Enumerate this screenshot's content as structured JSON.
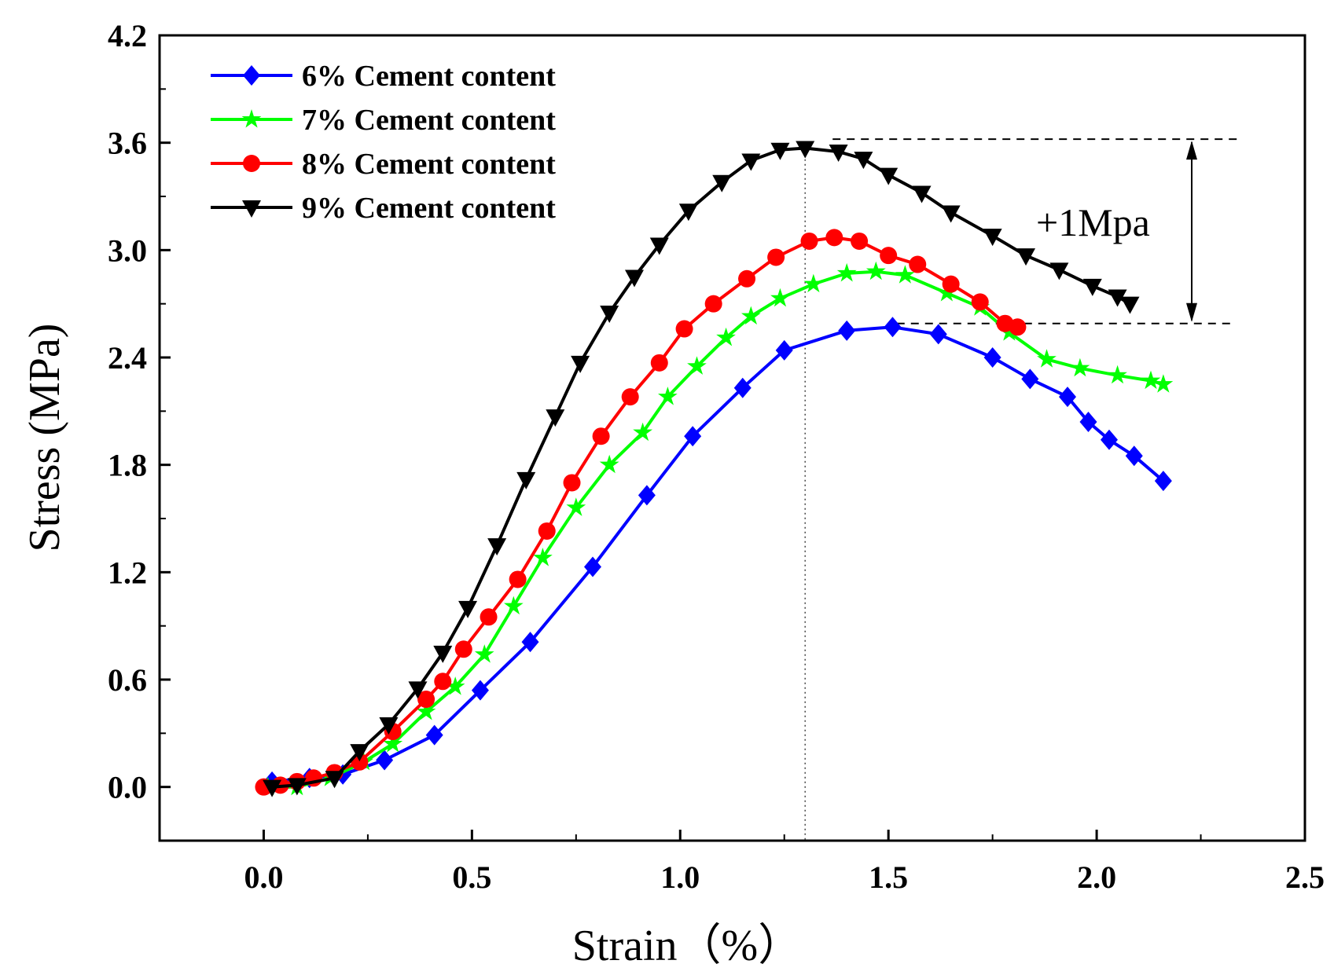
{
  "chart_data": {
    "type": "line",
    "title": "",
    "xlabel": "Strain（%）",
    "ylabel": "Stress (MPa)",
    "xlim": [
      -0.25,
      2.5
    ],
    "ylim": [
      -0.3,
      4.2
    ],
    "xticks": [
      0.0,
      0.5,
      1.0,
      1.5,
      2.0,
      2.5
    ],
    "xtick_labels": [
      "0.0",
      "0.5",
      "1.0",
      "1.5",
      "2.0",
      "2.5"
    ],
    "yticks": [
      0.0,
      0.6,
      1.2,
      1.8,
      2.4,
      3.0,
      3.6,
      4.2
    ],
    "ytick_labels": [
      "0.0",
      "0.6",
      "1.2",
      "1.8",
      "2.4",
      "3.0",
      "3.6",
      "4.2"
    ],
    "grid": false,
    "legend_position": "top-left",
    "series": [
      {
        "name": "6% Cement content",
        "color": "#0000ff",
        "marker": "diamond",
        "x": [
          0.02,
          0.11,
          0.19,
          0.29,
          0.41,
          0.52,
          0.64,
          0.79,
          0.92,
          1.03,
          1.15,
          1.25,
          1.4,
          1.51,
          1.62,
          1.75,
          1.84,
          1.93,
          1.98,
          2.03,
          2.09,
          2.16
        ],
        "y": [
          0.03,
          0.05,
          0.07,
          0.15,
          0.29,
          0.54,
          0.81,
          1.23,
          1.63,
          1.96,
          2.23,
          2.44,
          2.55,
          2.57,
          2.53,
          2.4,
          2.28,
          2.18,
          2.04,
          1.94,
          1.85,
          1.71
        ]
      },
      {
        "name": "7% Cement content",
        "color": "#00ff00",
        "marker": "star",
        "x": [
          0.01,
          0.08,
          0.16,
          0.24,
          0.31,
          0.39,
          0.46,
          0.53,
          0.6,
          0.67,
          0.75,
          0.83,
          0.91,
          0.97,
          1.04,
          1.11,
          1.17,
          1.24,
          1.32,
          1.4,
          1.47,
          1.54,
          1.64,
          1.72,
          1.79,
          1.88,
          1.96,
          2.05,
          2.13,
          2.16
        ],
        "y": [
          0.0,
          0.0,
          0.05,
          0.14,
          0.24,
          0.42,
          0.56,
          0.74,
          1.01,
          1.28,
          1.56,
          1.8,
          1.98,
          2.18,
          2.35,
          2.51,
          2.63,
          2.73,
          2.81,
          2.87,
          2.88,
          2.86,
          2.76,
          2.68,
          2.54,
          2.39,
          2.34,
          2.3,
          2.27,
          2.25
        ]
      },
      {
        "name": "8% Cement content",
        "color": "#ff0000",
        "marker": "circle",
        "x": [
          0.0,
          0.04,
          0.08,
          0.12,
          0.17,
          0.23,
          0.31,
          0.39,
          0.43,
          0.48,
          0.54,
          0.61,
          0.68,
          0.74,
          0.81,
          0.88,
          0.95,
          1.01,
          1.08,
          1.16,
          1.23,
          1.31,
          1.37,
          1.43,
          1.5,
          1.57,
          1.65,
          1.72,
          1.78,
          1.81
        ],
        "y": [
          0.0,
          0.01,
          0.03,
          0.05,
          0.08,
          0.14,
          0.31,
          0.49,
          0.59,
          0.77,
          0.95,
          1.16,
          1.43,
          1.7,
          1.96,
          2.18,
          2.37,
          2.56,
          2.7,
          2.84,
          2.96,
          3.05,
          3.07,
          3.05,
          2.97,
          2.92,
          2.81,
          2.71,
          2.59,
          2.57
        ]
      },
      {
        "name": "9% Cement content",
        "color": "#000000",
        "marker": "triangle-down",
        "x": [
          0.02,
          0.08,
          0.17,
          0.23,
          0.3,
          0.37,
          0.43,
          0.49,
          0.56,
          0.63,
          0.7,
          0.76,
          0.83,
          0.89,
          0.95,
          1.02,
          1.1,
          1.17,
          1.24,
          1.3,
          1.38,
          1.44,
          1.5,
          1.58,
          1.65,
          1.75,
          1.83,
          1.91,
          1.99,
          2.05,
          2.08
        ],
        "y": [
          0.0,
          0.01,
          0.05,
          0.2,
          0.35,
          0.55,
          0.75,
          1.0,
          1.35,
          1.72,
          2.07,
          2.37,
          2.65,
          2.85,
          3.03,
          3.22,
          3.38,
          3.5,
          3.56,
          3.57,
          3.55,
          3.51,
          3.42,
          3.32,
          3.21,
          3.08,
          2.97,
          2.89,
          2.8,
          2.74,
          2.7
        ]
      }
    ],
    "annotations": {
      "peak_diff_label": "+1Mpa",
      "peak_strain": 1.3,
      "upper_level": 3.62,
      "lower_level": 2.59
    }
  }
}
